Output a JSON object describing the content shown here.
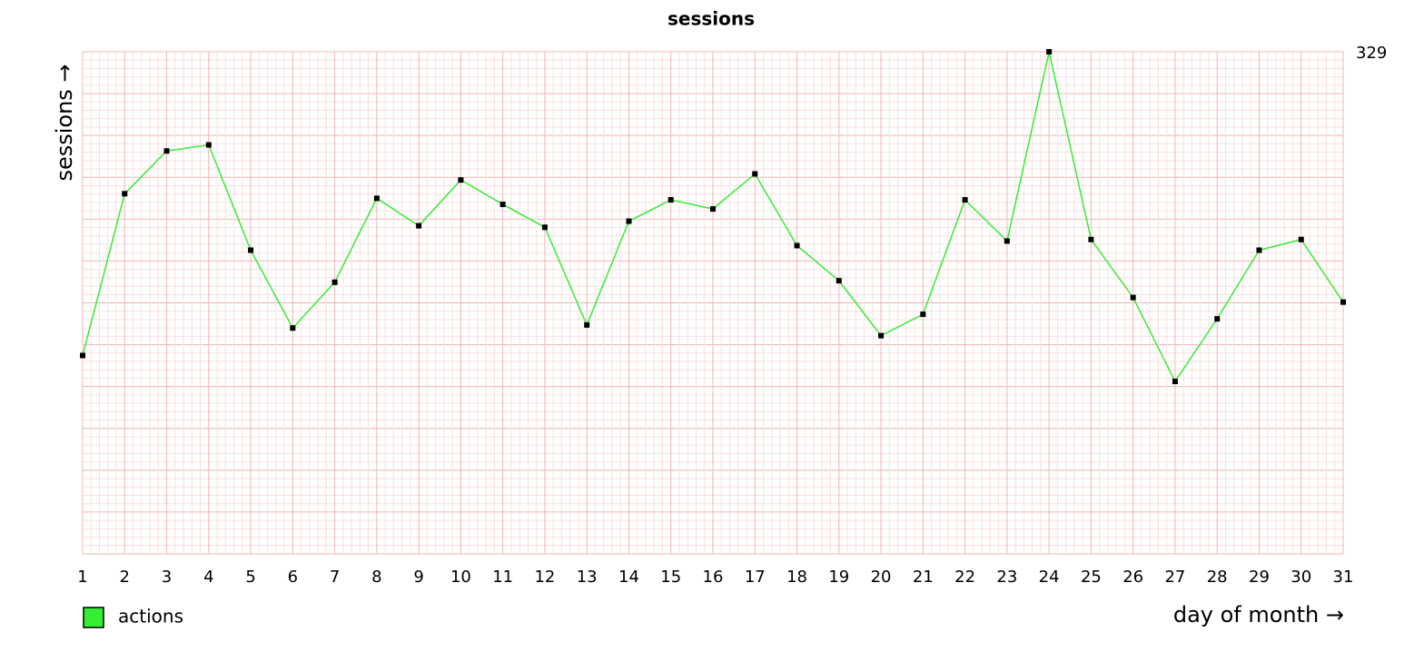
{
  "chart_data": {
    "type": "line",
    "title": "sessions",
    "y_label": "sessions →",
    "x_label": "day of month →",
    "categories": [
      "1",
      "2",
      "3",
      "4",
      "5",
      "6",
      "7",
      "8",
      "9",
      "10",
      "11",
      "12",
      "13",
      "14",
      "15",
      "16",
      "17",
      "18",
      "19",
      "20",
      "21",
      "22",
      "23",
      "24",
      "25",
      "26",
      "27",
      "28",
      "29",
      "30",
      "31"
    ],
    "series": [
      {
        "name": "actions",
        "color": "#33ee33",
        "marker_color": "#000000",
        "values": [
          130,
          236,
          264,
          268,
          199,
          148,
          178,
          233,
          215,
          245,
          229,
          214,
          150,
          218,
          232,
          226,
          249,
          202,
          179,
          143,
          157,
          232,
          205,
          329,
          206,
          168,
          113,
          154,
          199,
          206,
          165
        ]
      }
    ],
    "ylim": [
      0,
      329
    ],
    "yticks": [
      329
    ],
    "grid": true
  }
}
